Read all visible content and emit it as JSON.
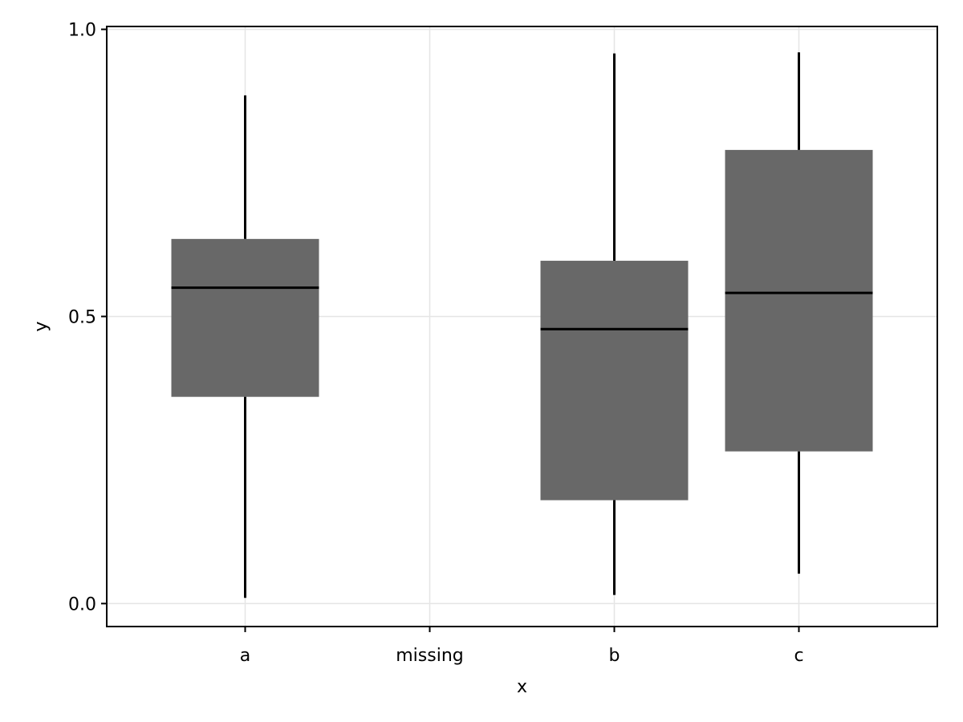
{
  "chart_data": {
    "type": "box",
    "title": "",
    "xlabel": "x",
    "ylabel": "y",
    "categories": [
      "a",
      "missing",
      "b",
      "c"
    ],
    "boxes": [
      {
        "category": "a",
        "whisker_low": 0.01,
        "q1": 0.36,
        "median": 0.55,
        "q3": 0.635,
        "whisker_high": 0.885
      },
      {
        "category": "b",
        "whisker_low": 0.015,
        "q1": 0.18,
        "median": 0.478,
        "q3": 0.597,
        "whisker_high": 0.958
      },
      {
        "category": "c",
        "whisker_low": 0.052,
        "q1": 0.265,
        "median": 0.541,
        "q3": 0.79,
        "whisker_high": 0.96
      }
    ],
    "ylim": [
      -0.04,
      1.005
    ],
    "yticks": [
      0.0,
      0.5,
      1.0
    ],
    "ytick_labels": [
      "0.0",
      "0.5",
      "1.0"
    ],
    "grid": true,
    "colors": {
      "box_fill": "#686868",
      "line": "#000000",
      "grid": "#e5e5e5"
    }
  }
}
